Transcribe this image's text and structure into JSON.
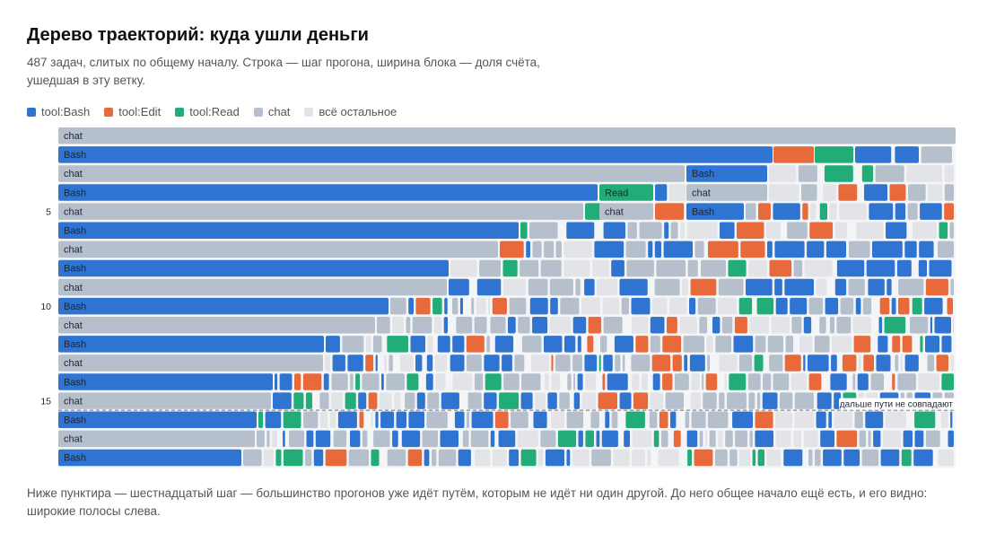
{
  "header": {
    "title": "Дерево траекторий: куда ушли деньги",
    "subtitle": "487 задач, слитых по общему началу. Строка — шаг прогона, ширина блока — доля счёта, ушедшая в эту ветку."
  },
  "legend": [
    {
      "label": "tool:Bash",
      "color": "#2f74d0"
    },
    {
      "label": "tool:Edit",
      "color": "#e8693a"
    },
    {
      "label": "tool:Read",
      "color": "#22ad78"
    },
    {
      "label": "chat",
      "color": "#b6bfcc"
    },
    {
      "label": "всё остальное",
      "color": "#e2e4e8"
    }
  ],
  "chart_data": {
    "type": "icicle",
    "total_tasks": 487,
    "y_ticks": [
      5,
      10,
      15
    ],
    "divider_after_step": 15,
    "divider_label": "дальше пути не совпадают",
    "colors": {
      "Bash": "#2f74d0",
      "Edit": "#e8693a",
      "Read": "#22ad78",
      "chat": "#b6bfcc",
      "other": "#e2e4e8"
    },
    "main_path": [
      {
        "step": 1,
        "label": "chat",
        "kind": "chat",
        "share": 1.0
      },
      {
        "step": 2,
        "label": "Bash",
        "kind": "Bash",
        "share": 0.796
      },
      {
        "step": 3,
        "label": "chat",
        "kind": "chat",
        "share": 0.698
      },
      {
        "step": 4,
        "label": "Bash",
        "kind": "Bash",
        "share": 0.601
      },
      {
        "step": 5,
        "label": "chat",
        "kind": "chat",
        "share": 0.585
      },
      {
        "step": 6,
        "label": "Bash",
        "kind": "Bash",
        "share": 0.513
      },
      {
        "step": 7,
        "label": "chat",
        "kind": "chat",
        "share": 0.49
      },
      {
        "step": 8,
        "label": "Bash",
        "kind": "Bash",
        "share": 0.435
      },
      {
        "step": 9,
        "label": "chat",
        "kind": "chat",
        "share": 0.433
      },
      {
        "step": 10,
        "label": "Bash",
        "kind": "Bash",
        "share": 0.368
      },
      {
        "step": 11,
        "label": "chat",
        "kind": "chat",
        "share": 0.353
      },
      {
        "step": 12,
        "label": "Bash",
        "kind": "Bash",
        "share": 0.296
      },
      {
        "step": 13,
        "label": "chat",
        "kind": "chat",
        "share": 0.295
      },
      {
        "step": 14,
        "label": "Bash",
        "kind": "Bash",
        "share": 0.239
      },
      {
        "step": 15,
        "label": "chat",
        "kind": "chat",
        "share": 0.237
      },
      {
        "step": 16,
        "label": "Bash",
        "kind": "Bash",
        "share": 0.221
      },
      {
        "step": 17,
        "label": "chat",
        "kind": "chat",
        "share": 0.219
      },
      {
        "step": 18,
        "label": "Bash",
        "kind": "Bash",
        "share": 0.204
      }
    ],
    "labeled_branches": [
      {
        "step": 2,
        "label": "",
        "kind": "Edit",
        "from": 0.797,
        "to": 0.842
      },
      {
        "step": 2,
        "label": "",
        "kind": "Read",
        "from": 0.843,
        "to": 0.886
      },
      {
        "step": 3,
        "label": "Bash",
        "kind": "Bash",
        "from": 0.7,
        "to": 0.79
      },
      {
        "step": 4,
        "label": "Read",
        "kind": "Read",
        "from": 0.603,
        "to": 0.663
      },
      {
        "step": 4,
        "label": "chat",
        "kind": "chat",
        "from": 0.7,
        "to": 0.79
      },
      {
        "step": 5,
        "label": "chat",
        "kind": "chat",
        "from": 0.603,
        "to": 0.663
      },
      {
        "step": 5,
        "label": "Bash",
        "kind": "Bash",
        "from": 0.7,
        "to": 0.764
      }
    ]
  },
  "footnote": "Ниже пунктира — шестнадцатый шаг — большинство прогонов уже идёт путём, которым не идёт ни один другой. До него общее начало ещё есть, и его видно: широкие полосы слева."
}
